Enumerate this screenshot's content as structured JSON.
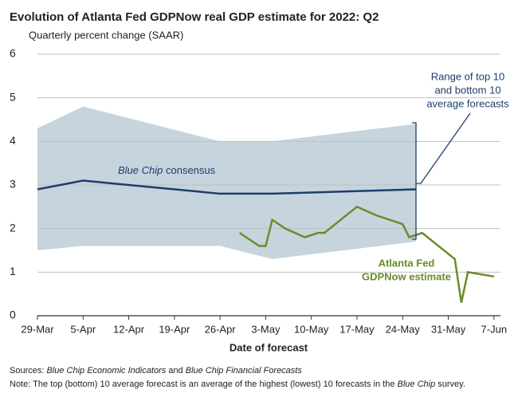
{
  "chart_data": {
    "type": "line",
    "title": "Evolution of Atlanta Fed GDPNow real GDP estimate for 2022: Q2",
    "subtitle": "Quarterly percent change (SAAR)",
    "x_label": "Date of forecast",
    "xlim": [
      0,
      71
    ],
    "xticks": [
      {
        "value": 0,
        "label": "29-Mar"
      },
      {
        "value": 7,
        "label": "5-Apr"
      },
      {
        "value": 14,
        "label": "12-Apr"
      },
      {
        "value": 21,
        "label": "19-Apr"
      },
      {
        "value": 28,
        "label": "26-Apr"
      },
      {
        "value": 35,
        "label": "3-May"
      },
      {
        "value": 42,
        "label": "10-May"
      },
      {
        "value": 49,
        "label": "17-May"
      },
      {
        "value": 56,
        "label": "24-May"
      },
      {
        "value": 63,
        "label": "31-May"
      },
      {
        "value": 70,
        "label": "7-Jun"
      }
    ],
    "ylim": [
      0,
      6
    ],
    "yticks": [
      0,
      1,
      2,
      3,
      4,
      5,
      6
    ],
    "grid": true,
    "band": {
      "color": "#c6d4dd",
      "x": [
        0,
        7,
        28,
        36,
        58
      ],
      "upper": [
        4.3,
        4.8,
        4.0,
        4.0,
        4.4
      ],
      "lower": [
        1.5,
        1.6,
        1.6,
        1.3,
        1.7
      ],
      "label": [
        "Range of top 10",
        "and bottom 10",
        "average forecasts"
      ]
    },
    "series": [
      {
        "color": "#1f3d6b",
        "label": [
          "Blue Chip",
          " consensus"
        ],
        "x": [
          0,
          7,
          28,
          36,
          58
        ],
        "values": [
          2.9,
          3.1,
          2.8,
          2.8,
          2.9
        ]
      },
      {
        "color": "#6b8c2a",
        "label": [
          "Atlanta Fed",
          "GDPNow estimate"
        ],
        "x": [
          31,
          34,
          35,
          36,
          38,
          41,
          43,
          44,
          49,
          52,
          56,
          57,
          59,
          64,
          65,
          66,
          70
        ],
        "values": [
          1.9,
          1.6,
          1.6,
          2.2,
          2.0,
          1.8,
          1.9,
          1.9,
          2.5,
          2.3,
          2.1,
          1.8,
          1.9,
          1.3,
          0.3,
          1.0,
          0.9
        ]
      }
    ],
    "sources": [
      "Sources: ",
      "Blue Chip Economic Indicators",
      " and ",
      "Blue Chip Financial Forecasts"
    ],
    "note": [
      "Note: The top (bottom) 10 average forecast is an average of the highest (lowest) 10 forecasts in the ",
      "Blue Chip",
      " survey."
    ]
  }
}
